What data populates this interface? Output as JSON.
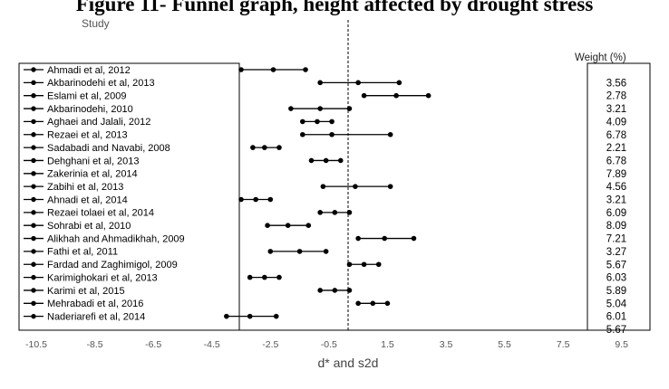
{
  "figure_title": "Figure 11- Funnel graph, height affected by drought stress",
  "chart_data": {
    "type": "forest",
    "study_header": "Study",
    "weight_header": "Weight (%)",
    "xlabel": "d* and s2d",
    "xlim": [
      -10.5,
      10.5
    ],
    "x_ticks": [
      "-10.5",
      "-8.5",
      "-6.5",
      "-4.5",
      "-2.5",
      "-0.5",
      "1.5",
      "3.5",
      "5.5",
      "7.5",
      "9.5"
    ],
    "reference_line": -0.5,
    "studies": [
      {
        "name": "Ahmadi et al, 2012",
        "lower": -3.5,
        "estimate": -2.4,
        "upper": -1.3
      },
      {
        "name": "Akbarinodehi et al, 2013",
        "lower": -0.8,
        "estimate": 0.5,
        "upper": 1.9
      },
      {
        "name": "Eslami et al, 2009",
        "lower": 0.7,
        "estimate": 1.8,
        "upper": 2.9
      },
      {
        "name": "Akbarinodehi, 2010",
        "lower": -1.8,
        "estimate": -0.8,
        "upper": 0.2
      },
      {
        "name": "Aghaei and Jalali, 2012",
        "lower": -1.4,
        "estimate": -0.9,
        "upper": -0.4
      },
      {
        "name": "Rezaei et al, 2013",
        "lower": -1.4,
        "estimate": -0.4,
        "upper": 1.6
      },
      {
        "name": "Sadabadi and Navabi, 2008",
        "lower": -3.1,
        "estimate": -2.7,
        "upper": -2.2
      },
      {
        "name": "Dehghani et al, 2013",
        "lower": -1.1,
        "estimate": -0.6,
        "upper": -0.1
      },
      {
        "name": "Zakerinia et al, 2014",
        "lower": null,
        "estimate": null,
        "upper": null
      },
      {
        "name": "Zabihi et al, 2013",
        "lower": -0.7,
        "estimate": 0.4,
        "upper": 1.6
      },
      {
        "name": "Ahnadi et al, 2014",
        "lower": -3.5,
        "estimate": -3.0,
        "upper": -2.5
      },
      {
        "name": "Rezaei tolaei et al, 2014",
        "lower": -0.8,
        "estimate": -0.3,
        "upper": 0.2
      },
      {
        "name": "Sohrabi et al, 2010",
        "lower": -2.6,
        "estimate": -1.9,
        "upper": -1.2
      },
      {
        "name": "Alikhah and Ahmadikhah, 2009",
        "lower": 0.5,
        "estimate": 1.4,
        "upper": 2.4
      },
      {
        "name": "Fathi et al, 2011",
        "lower": -2.5,
        "estimate": -1.5,
        "upper": -0.6
      },
      {
        "name": "Fardad and Zaghimigol, 2009",
        "lower": 0.2,
        "estimate": 0.7,
        "upper": 1.2
      },
      {
        "name": "Karimighokari et al, 2013",
        "lower": -3.2,
        "estimate": -2.7,
        "upper": -2.2
      },
      {
        "name": "Karimi et al, 2015",
        "lower": -0.8,
        "estimate": -0.3,
        "upper": 0.2
      },
      {
        "name": "Mehrabadi et al, 2016",
        "lower": 0.5,
        "estimate": 1.0,
        "upper": 1.5
      },
      {
        "name": "Naderiarefi et al, 2014",
        "lower": -4.0,
        "estimate": -3.2,
        "upper": -2.3
      }
    ],
    "weights": [
      "3.56",
      "2.78",
      "3.21",
      "4.09",
      "6.78",
      "2.21",
      "6.78",
      "7.89",
      "4.56",
      "3.21",
      "6.09",
      "8.09",
      "7.21",
      "3.27",
      "5.67",
      "6.03",
      "5.89",
      "5.04",
      "6.01",
      "5.67"
    ]
  }
}
